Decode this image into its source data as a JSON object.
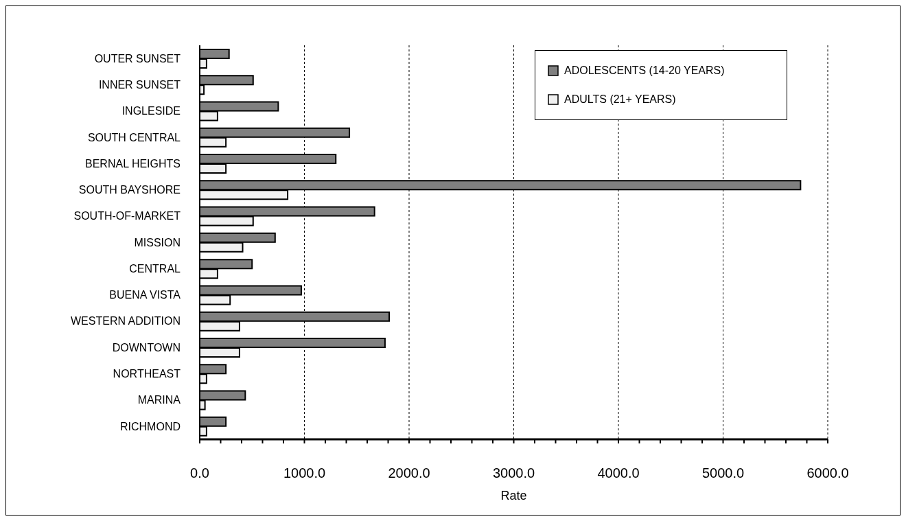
{
  "chart_data": {
    "type": "bar",
    "orientation": "horizontal",
    "xlabel": "Rate",
    "categories": [
      "OUTER SUNSET",
      "INNER SUNSET",
      "INGLESIDE",
      "SOUTH CENTRAL",
      "BERNAL HEIGHTS",
      "SOUTH BAYSHORE",
      "SOUTH-OF-MARKET",
      "MISSION",
      "CENTRAL",
      "BUENA VISTA",
      "WESTERN ADDITION",
      "DOWNTOWN",
      "NORTHEAST",
      "MARINA",
      "RICHMOND"
    ],
    "series": [
      {
        "name": "ADOLESCENTS (14-20 YEARS)",
        "color": "#808080",
        "values": [
          280,
          510,
          750,
          1430,
          1300,
          5740,
          1670,
          720,
          500,
          970,
          1810,
          1770,
          250,
          435,
          250
        ]
      },
      {
        "name": "ADULTS (21+ YEARS)",
        "color": "#f0f0f0",
        "values": [
          65,
          40,
          170,
          250,
          250,
          840,
          510,
          410,
          170,
          290,
          380,
          380,
          65,
          50,
          65
        ]
      }
    ],
    "xlim": [
      0,
      6000
    ],
    "xticks": [
      {
        "value": 0,
        "label": "0.0"
      },
      {
        "value": 200,
        "label": null
      },
      {
        "value": 400,
        "label": null
      },
      {
        "value": 600,
        "label": null
      },
      {
        "value": 800,
        "label": null
      },
      {
        "value": 1000,
        "label": "1000.0"
      },
      {
        "value": 1200,
        "label": null
      },
      {
        "value": 1400,
        "label": null
      },
      {
        "value": 1600,
        "label": null
      },
      {
        "value": 1800,
        "label": null
      },
      {
        "value": 2000,
        "label": "2000.0"
      },
      {
        "value": 2200,
        "label": null
      },
      {
        "value": 2400,
        "label": null
      },
      {
        "value": 2600,
        "label": null
      },
      {
        "value": 2800,
        "label": null
      },
      {
        "value": 3000,
        "label": "3000.0"
      },
      {
        "value": 3200,
        "label": null
      },
      {
        "value": 3400,
        "label": null
      },
      {
        "value": 3600,
        "label": null
      },
      {
        "value": 3800,
        "label": null
      },
      {
        "value": 4000,
        "label": "4000.0"
      },
      {
        "value": 4200,
        "label": null
      },
      {
        "value": 4400,
        "label": null
      },
      {
        "value": 4600,
        "label": null
      },
      {
        "value": 4800,
        "label": null
      },
      {
        "value": 5000,
        "label": "5000.0"
      },
      {
        "value": 5200,
        "label": null
      },
      {
        "value": 5400,
        "label": null
      },
      {
        "value": 5600,
        "label": null
      },
      {
        "value": 5800,
        "label": null
      },
      {
        "value": 6000,
        "label": "6000.0"
      }
    ],
    "grid": "x",
    "legend": "top right"
  }
}
